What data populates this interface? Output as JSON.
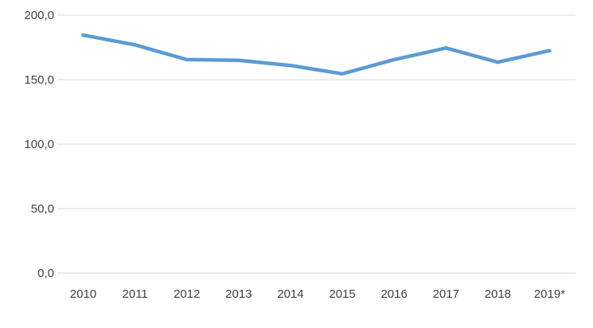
{
  "chart_data": {
    "type": "line",
    "categories": [
      "2010",
      "2011",
      "2012",
      "2013",
      "2014",
      "2015",
      "2016",
      "2017",
      "2018",
      "2019*"
    ],
    "series": [
      {
        "values": [
          184.5,
          177.0,
          165.5,
          165.0,
          161.0,
          154.5,
          165.5,
          174.5,
          163.5,
          172.5
        ],
        "color": "#5b9bd5"
      }
    ],
    "ylim": [
      0,
      200
    ],
    "y_ticks": [
      0,
      50,
      100,
      150,
      200
    ],
    "y_tick_labels": [
      "0,0",
      "50,0",
      "100,0",
      "150,0",
      "200,0"
    ],
    "grid": true,
    "legend": "none"
  }
}
